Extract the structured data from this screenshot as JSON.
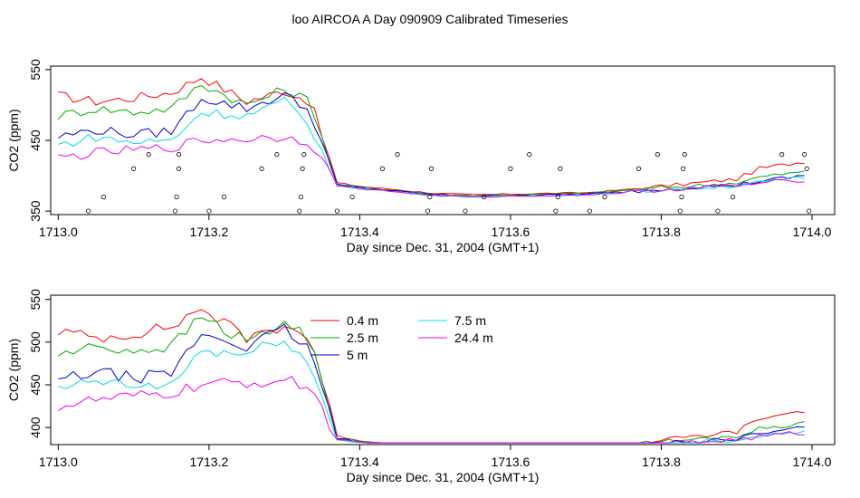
{
  "title": "loo AIRCOA A  Day 090909  Calibrated Timeseries",
  "chart_data": [
    {
      "type": "line",
      "xlabel": "Day since Dec. 31, 2004 (GMT+1)",
      "ylabel": "CO2 (ppm)",
      "xlim": [
        1712.99,
        1714.03
      ],
      "ylim": [
        345,
        555
      ],
      "xticks": [
        1713.0,
        1713.2,
        1713.4,
        1713.6,
        1713.8,
        1714.0
      ],
      "xtick_labels": [
        "1713.0",
        "1713.2",
        "1713.4",
        "1713.6",
        "1713.8",
        "1714.0"
      ],
      "yticks": [
        350,
        450,
        550
      ],
      "ytick_labels": [
        "350",
        "450",
        "550"
      ],
      "x_range": [
        1713.0,
        1713.99
      ],
      "series": [
        {
          "color": "#ff0000",
          "x": [
            1713.0,
            1713.05,
            1713.1,
            1713.15,
            1713.19,
            1713.25,
            1713.3,
            1713.335,
            1713.37,
            1713.4,
            1713.45,
            1713.5,
            1713.55,
            1713.6,
            1713.65,
            1713.7,
            1713.75,
            1713.8,
            1713.85,
            1713.9,
            1713.93,
            1713.96,
            1713.99
          ],
          "y": [
            513,
            505,
            510,
            518,
            540,
            505,
            520,
            505,
            390,
            385,
            380,
            375,
            373,
            374,
            375,
            376,
            380,
            385,
            390,
            395,
            410,
            415,
            420
          ]
        },
        {
          "color": "#00aa00",
          "x": [
            1713.0,
            1713.05,
            1713.1,
            1713.15,
            1713.19,
            1713.25,
            1713.3,
            1713.335,
            1713.37,
            1713.4,
            1713.45,
            1713.5,
            1713.55,
            1713.6,
            1713.65,
            1713.7,
            1713.75,
            1713.8,
            1713.85,
            1713.9,
            1713.93,
            1713.96,
            1713.99
          ],
          "y": [
            485,
            495,
            490,
            495,
            530,
            500,
            522,
            505,
            388,
            384,
            379,
            374,
            372,
            373,
            374,
            375,
            379,
            383,
            386,
            390,
            398,
            402,
            405
          ]
        },
        {
          "color": "#0000cc",
          "x": [
            1713.0,
            1713.05,
            1713.1,
            1713.15,
            1713.19,
            1713.25,
            1713.3,
            1713.335,
            1713.37,
            1713.4,
            1713.45,
            1713.5,
            1713.55,
            1713.6,
            1713.65,
            1713.7,
            1713.75,
            1713.8,
            1713.85,
            1713.9,
            1713.93,
            1713.96,
            1713.99
          ],
          "y": [
            455,
            465,
            458,
            463,
            510,
            495,
            515,
            490,
            387,
            383,
            378,
            373,
            371,
            372,
            373,
            374,
            377,
            381,
            384,
            387,
            392,
            396,
            400
          ]
        },
        {
          "color": "#00dddd",
          "x": [
            1713.0,
            1713.05,
            1713.1,
            1713.15,
            1713.19,
            1713.25,
            1713.3,
            1713.335,
            1713.37,
            1713.4,
            1713.45,
            1713.5,
            1713.55,
            1713.6,
            1713.65,
            1713.7,
            1713.75,
            1713.8,
            1713.85,
            1713.9,
            1713.93,
            1713.96,
            1713.99
          ],
          "y": [
            443,
            455,
            447,
            450,
            490,
            485,
            505,
            470,
            386,
            382,
            377,
            372,
            370,
            371,
            372,
            373,
            376,
            380,
            383,
            386,
            390,
            394,
            397
          ]
        },
        {
          "color": "#ee00ee",
          "x": [
            1713.0,
            1713.05,
            1713.1,
            1713.15,
            1713.19,
            1713.25,
            1713.3,
            1713.335,
            1713.37,
            1713.4,
            1713.45,
            1713.5,
            1713.55,
            1713.6,
            1713.65,
            1713.7,
            1713.75,
            1713.8,
            1713.85,
            1713.9,
            1713.93,
            1713.96,
            1713.99
          ],
          "y": [
            425,
            432,
            436,
            440,
            450,
            452,
            455,
            448,
            386,
            382,
            377,
            372,
            370,
            371,
            372,
            373,
            376,
            380,
            383,
            386,
            389,
            392,
            394
          ]
        }
      ],
      "points": {
        "x": [
          1713.04,
          1713.06,
          1713.1,
          1713.12,
          1713.155,
          1713.157,
          1713.16,
          1713.16,
          1713.2,
          1713.22,
          1713.27,
          1713.29,
          1713.32,
          1713.322,
          1713.324,
          1713.326,
          1713.37,
          1713.39,
          1713.43,
          1713.45,
          1713.49,
          1713.493,
          1713.495,
          1713.54,
          1713.565,
          1713.6,
          1713.625,
          1713.66,
          1713.663,
          1713.666,
          1713.705,
          1713.725,
          1713.77,
          1713.795,
          1713.825,
          1713.827,
          1713.829,
          1713.831,
          1713.875,
          1713.895,
          1713.96,
          1713.99,
          1713.993,
          1713.996
        ],
        "y": [
          350,
          370,
          410,
          430,
          350,
          370,
          410,
          430,
          350,
          370,
          410,
          430,
          350,
          370,
          410,
          430,
          350,
          370,
          410,
          430,
          350,
          370,
          410,
          350,
          370,
          410,
          430,
          350,
          370,
          410,
          350,
          370,
          410,
          430,
          350,
          370,
          410,
          430,
          350,
          370,
          430,
          430,
          410,
          350
        ]
      }
    },
    {
      "type": "line",
      "xlabel": "Day since Dec. 31, 2004 (GMT+1)",
      "ylabel": "CO2 (ppm)",
      "xlim": [
        1712.99,
        1714.03
      ],
      "ylim": [
        380,
        555
      ],
      "xticks": [
        1713.0,
        1713.2,
        1713.4,
        1713.6,
        1713.8,
        1714.0
      ],
      "xtick_labels": [
        "1713.0",
        "1713.2",
        "1713.4",
        "1713.6",
        "1713.8",
        "1714.0"
      ],
      "yticks": [
        400,
        450,
        500,
        550
      ],
      "ytick_labels": [
        "400",
        "450",
        "500",
        "550"
      ],
      "x_range": [
        1713.0,
        1713.99
      ],
      "legend": {
        "placement": "top-center",
        "entries": [
          {
            "label": "0.4 m",
            "color": "#ff0000"
          },
          {
            "label": "2.5 m",
            "color": "#00aa00"
          },
          {
            "label": "5 m",
            "color": "#0000cc"
          },
          {
            "label": "7.5 m",
            "color": "#00dddd"
          },
          {
            "label": "24.4 m",
            "color": "#ee00ee"
          }
        ]
      },
      "series": [
        {
          "name": "0.4 m",
          "color": "#ff0000",
          "x": [
            1713.0,
            1713.05,
            1713.1,
            1713.15,
            1713.19,
            1713.25,
            1713.3,
            1713.335,
            1713.37,
            1713.4,
            1713.45,
            1713.5,
            1713.55,
            1713.6,
            1713.65,
            1713.7,
            1713.75,
            1713.8,
            1713.85,
            1713.9,
            1713.93,
            1713.96,
            1713.99
          ],
          "y": [
            513,
            505,
            510,
            518,
            540,
            505,
            520,
            505,
            390,
            385,
            380,
            375,
            373,
            374,
            375,
            376,
            380,
            385,
            390,
            395,
            410,
            415,
            420
          ]
        },
        {
          "name": "2.5 m",
          "color": "#00aa00",
          "x": [
            1713.0,
            1713.05,
            1713.1,
            1713.15,
            1713.19,
            1713.25,
            1713.3,
            1713.335,
            1713.37,
            1713.4,
            1713.45,
            1713.5,
            1713.55,
            1713.6,
            1713.65,
            1713.7,
            1713.75,
            1713.8,
            1713.85,
            1713.9,
            1713.93,
            1713.96,
            1713.99
          ],
          "y": [
            485,
            495,
            490,
            495,
            530,
            500,
            522,
            505,
            388,
            384,
            379,
            374,
            372,
            373,
            374,
            375,
            379,
            383,
            386,
            390,
            398,
            402,
            405
          ]
        },
        {
          "name": "5 m",
          "color": "#0000cc",
          "x": [
            1713.0,
            1713.05,
            1713.1,
            1713.15,
            1713.19,
            1713.25,
            1713.3,
            1713.335,
            1713.37,
            1713.4,
            1713.45,
            1713.5,
            1713.55,
            1713.6,
            1713.65,
            1713.7,
            1713.75,
            1713.8,
            1713.85,
            1713.9,
            1713.93,
            1713.96,
            1713.99
          ],
          "y": [
            455,
            465,
            458,
            463,
            510,
            495,
            515,
            490,
            387,
            383,
            378,
            373,
            371,
            372,
            373,
            374,
            377,
            381,
            384,
            387,
            392,
            396,
            400
          ]
        },
        {
          "name": "7.5 m",
          "color": "#00dddd",
          "x": [
            1713.0,
            1713.05,
            1713.1,
            1713.15,
            1713.19,
            1713.25,
            1713.3,
            1713.335,
            1713.37,
            1713.4,
            1713.45,
            1713.5,
            1713.55,
            1713.6,
            1713.65,
            1713.7,
            1713.75,
            1713.8,
            1713.85,
            1713.9,
            1713.93,
            1713.96,
            1713.99
          ],
          "y": [
            443,
            455,
            447,
            450,
            490,
            485,
            505,
            470,
            386,
            382,
            377,
            372,
            370,
            371,
            372,
            373,
            376,
            380,
            383,
            386,
            390,
            394,
            397
          ]
        },
        {
          "name": "24.4 m",
          "color": "#ee00ee",
          "x": [
            1713.0,
            1713.05,
            1713.1,
            1713.15,
            1713.19,
            1713.25,
            1713.3,
            1713.335,
            1713.37,
            1713.4,
            1713.45,
            1713.5,
            1713.55,
            1713.6,
            1713.65,
            1713.7,
            1713.75,
            1713.8,
            1713.85,
            1713.9,
            1713.93,
            1713.96,
            1713.99
          ],
          "y": [
            425,
            432,
            436,
            440,
            450,
            452,
            455,
            448,
            386,
            382,
            377,
            372,
            370,
            371,
            372,
            373,
            376,
            380,
            383,
            386,
            389,
            392,
            394
          ]
        }
      ]
    }
  ]
}
